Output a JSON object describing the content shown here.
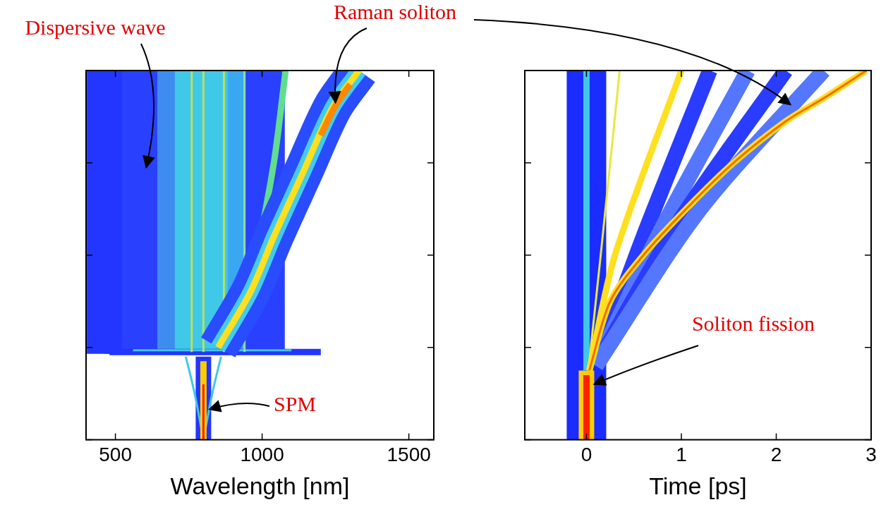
{
  "chart_data": [
    {
      "type": "line",
      "x_label": "Wavelength [nm]",
      "xlim": [
        400,
        1585
      ],
      "xticks": [
        500,
        1000,
        1500
      ],
      "ylim": [
        0,
        4
      ],
      "yticks": [
        0,
        1,
        2,
        3,
        4
      ],
      "tick_labels": "x",
      "grid": false,
      "series": [
        {
          "color": "#2236ff",
          "line_style": "band",
          "x": [
            470,
            470
          ],
          "values": [
            0.93,
            4
          ]
        },
        {
          "color": "#2236ff",
          "line_style": "band",
          "x": [
            530,
            530
          ],
          "values": [
            0.93,
            4
          ]
        },
        {
          "color": "#2a40ff",
          "line_style": "band",
          "x": [
            590,
            590
          ],
          "values": [
            0.93,
            4
          ]
        },
        {
          "color": "#2a40ff",
          "line_style": "band",
          "x": [
            650,
            650
          ],
          "values": [
            0.93,
            4
          ]
        },
        {
          "color": "#3f8cf0",
          "line_style": "band",
          "x": [
            710,
            710
          ],
          "values": [
            0.93,
            4
          ]
        },
        {
          "color": "#40c8e8",
          "line_style": "band",
          "x": [
            770,
            770
          ],
          "values": [
            0.93,
            4
          ]
        },
        {
          "color": "#40c8e8",
          "line_style": "band",
          "x": [
            830,
            830
          ],
          "values": [
            0.93,
            4
          ]
        },
        {
          "color": "#40c8e8",
          "line_style": "band",
          "x": [
            890,
            890
          ],
          "values": [
            0.93,
            4
          ]
        },
        {
          "color": "#3aa8f0",
          "line_style": "band",
          "x": [
            950,
            950
          ],
          "values": [
            0.93,
            4
          ]
        },
        {
          "color": "#2a40ff",
          "line_style": "band",
          "x": [
            1010,
            1010
          ],
          "values": [
            0.93,
            4
          ]
        },
        {
          "color": "#2236ff",
          "line_style": "medium",
          "x": [
            480,
            1200
          ],
          "values": [
            0.95,
            0.95
          ]
        },
        {
          "color": "#40c8e8",
          "line_style": "thin",
          "x": [
            560,
            1100
          ],
          "values": [
            0.97,
            0.97
          ]
        },
        {
          "color": "#b8e060",
          "line_style": "thin",
          "x": [
            760,
            760
          ],
          "values": [
            0.95,
            4
          ]
        },
        {
          "color": "#b8e060",
          "line_style": "thin",
          "x": [
            800,
            800
          ],
          "values": [
            0.95,
            4
          ]
        },
        {
          "color": "#b8e060",
          "line_style": "thin",
          "x": [
            870,
            870
          ],
          "values": [
            0.95,
            4
          ]
        },
        {
          "color": "#8ee0a0",
          "line_style": "thin",
          "x": [
            940,
            940
          ],
          "values": [
            0.95,
            4
          ]
        },
        {
          "color": "#60dd90",
          "line_style": "medium",
          "x": [
            900,
            980,
            1040,
            1080
          ],
          "values": [
            0.95,
            2,
            3,
            4
          ]
        },
        {
          "color": "#2a4cff",
          "line_style": "band",
          "x": [
            850,
            960,
            1040,
            1140,
            1240,
            1330
          ],
          "values": [
            1.0,
            1.6,
            2.2,
            2.9,
            3.6,
            4.0
          ]
        },
        {
          "color": "#44ccee",
          "line_style": "wide",
          "x": [
            850,
            960,
            1040,
            1140,
            1240,
            1330
          ],
          "values": [
            1.0,
            1.6,
            2.2,
            2.9,
            3.6,
            4.0
          ]
        },
        {
          "color": "#ffe020",
          "line_style": "medium",
          "x": [
            850,
            960,
            1040,
            1140,
            1240,
            1330
          ],
          "values": [
            1.0,
            1.6,
            2.2,
            2.9,
            3.6,
            4.0
          ]
        },
        {
          "color": "#ff8800",
          "line_style": "medium",
          "x": [
            1200,
            1250,
            1300
          ],
          "values": [
            3.3,
            3.62,
            3.85
          ]
        },
        {
          "color": "#2236ff",
          "line_style": "wide",
          "x": [
            800,
            800
          ],
          "values": [
            0,
            0.9
          ]
        },
        {
          "color": "#40c8e8",
          "line_style": "thin",
          "x": [
            800,
            770,
            740
          ],
          "values": [
            0,
            0.5,
            0.9
          ]
        },
        {
          "color": "#40c8e8",
          "line_style": "thin",
          "x": [
            800,
            830,
            860
          ],
          "values": [
            0,
            0.5,
            0.9
          ]
        },
        {
          "color": "#ffcc00",
          "line_style": "medium",
          "x": [
            800,
            800
          ],
          "values": [
            0,
            0.85
          ]
        },
        {
          "color": "#ff2000",
          "line_style": "thin",
          "x": [
            800,
            800
          ],
          "values": [
            0,
            0.6
          ]
        }
      ],
      "annotations": [
        {
          "text": "Dispersive wave",
          "x": 605,
          "y": 2.95,
          "color": "#e00000"
        },
        {
          "text": "Raman soliton",
          "x": 1250,
          "y": 3.65,
          "color": "#e00000"
        },
        {
          "text": "SPM",
          "x": 820,
          "y": 0.33,
          "color": "#e00000"
        }
      ]
    },
    {
      "type": "line",
      "x_label": "Time [ps]",
      "xlim": [
        -0.65,
        3.0
      ],
      "xticks": [
        0,
        1,
        2,
        3
      ],
      "ylim": [
        0,
        4
      ],
      "yticks": [
        0,
        1,
        2,
        3,
        4
      ],
      "tick_labels": "x",
      "grid": false,
      "series": [
        {
          "color": "#1a2cff",
          "line_style": "band",
          "x": [
            0,
            0
          ],
          "values": [
            0,
            4
          ]
        },
        {
          "color": "#2a3cff",
          "line_style": "wide",
          "x": [
            0.1,
            0.6,
            1.3
          ],
          "values": [
            0.8,
            2.2,
            4
          ]
        },
        {
          "color": "#5577ff",
          "line_style": "wide",
          "x": [
            0.1,
            0.8,
            1.7
          ],
          "values": [
            0.8,
            2.3,
            4
          ]
        },
        {
          "color": "#2a3cff",
          "line_style": "wide",
          "x": [
            0.1,
            1.0,
            2.1
          ],
          "values": [
            0.8,
            2.4,
            4
          ]
        },
        {
          "color": "#5577ff",
          "line_style": "wide",
          "x": [
            0.1,
            1.2,
            2.5
          ],
          "values": [
            0.8,
            2.5,
            4
          ]
        },
        {
          "color": "#ffcc00",
          "line_style": "wide",
          "x": [
            0,
            0
          ],
          "values": [
            0,
            0.75
          ]
        },
        {
          "color": "#ff2000",
          "line_style": "medium",
          "x": [
            0,
            0
          ],
          "values": [
            0,
            0.7
          ]
        },
        {
          "color": "#40c8e8",
          "line_style": "medium",
          "x": [
            0,
            0
          ],
          "values": [
            0.75,
            4
          ]
        },
        {
          "color": "#e8e840",
          "line_style": "thin",
          "x": [
            0.02,
            0.15,
            0.35
          ],
          "values": [
            0.75,
            2,
            4
          ]
        },
        {
          "color": "#ffe020",
          "line_style": "medium",
          "x": [
            0.03,
            0.3,
            1.0
          ],
          "values": [
            0.75,
            2,
            4
          ]
        },
        {
          "color": "#ffe020",
          "line_style": "medium",
          "x": [
            0.03,
            0.25,
            0.6,
            1.05,
            1.55,
            2.1,
            2.5,
            2.95
          ],
          "values": [
            0.75,
            1.5,
            2.0,
            2.5,
            3.0,
            3.45,
            3.7,
            4.0
          ]
        },
        {
          "color": "#ff6a00",
          "line_style": "thin",
          "x": [
            0.03,
            0.25,
            0.6,
            1.05,
            1.55,
            2.1,
            2.5,
            2.95
          ],
          "values": [
            0.75,
            1.5,
            2.0,
            2.5,
            3.0,
            3.45,
            3.7,
            4.0
          ]
        }
      ],
      "annotations": [
        {
          "text": "Raman soliton",
          "x": 2.15,
          "y": 3.63,
          "color": "#e00000"
        },
        {
          "text": "Soliton fission",
          "x": 0.08,
          "y": 0.6,
          "color": "#e00000"
        }
      ]
    }
  ]
}
